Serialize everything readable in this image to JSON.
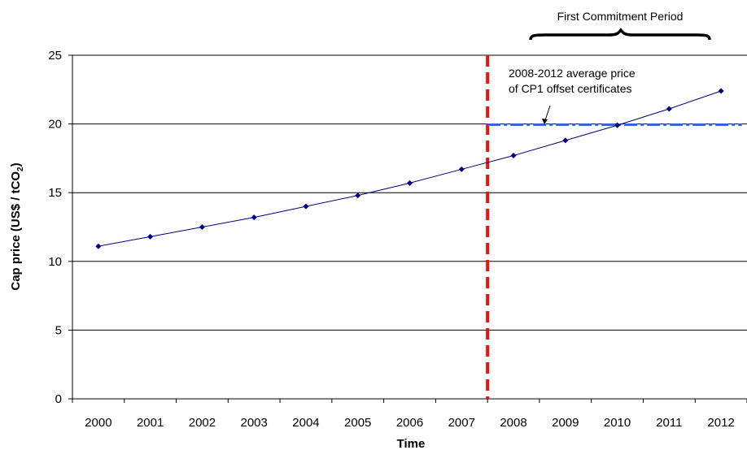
{
  "chart_data": {
    "type": "line",
    "title": "",
    "xlabel": "Time",
    "ylabel_main": "Cap price (US$ / tCO",
    "ylabel_sub": "2",
    "ylabel_end": ")",
    "categories": [
      "2000",
      "2001",
      "2002",
      "2003",
      "2004",
      "2005",
      "2006",
      "2007",
      "2008",
      "2009",
      "2010",
      "2011",
      "2012"
    ],
    "yticks": [
      "0",
      "5",
      "10",
      "15",
      "20",
      "25"
    ],
    "ylim": [
      0,
      25
    ],
    "grid": true,
    "series": [
      {
        "values": [
          11.1,
          11.8,
          12.5,
          13.2,
          14.0,
          14.8,
          15.7,
          16.7,
          17.7,
          18.8,
          19.9,
          21.1,
          22.4
        ],
        "color": "#000080"
      }
    ],
    "reference_lines": {
      "vertical_at_year": 2007.5,
      "vertical_color": "#ee1111",
      "horizontal_value": 19.95,
      "horizontal_from_year": 2007.5,
      "horizontal_to_year": 2012.4,
      "horizontal_color": "#3366dd"
    },
    "annotations": {
      "average_price_line1": "2008-2012 average price",
      "average_price_line2": "of CP1 offset certificates",
      "commitment_period": "First Commitment Period"
    }
  }
}
